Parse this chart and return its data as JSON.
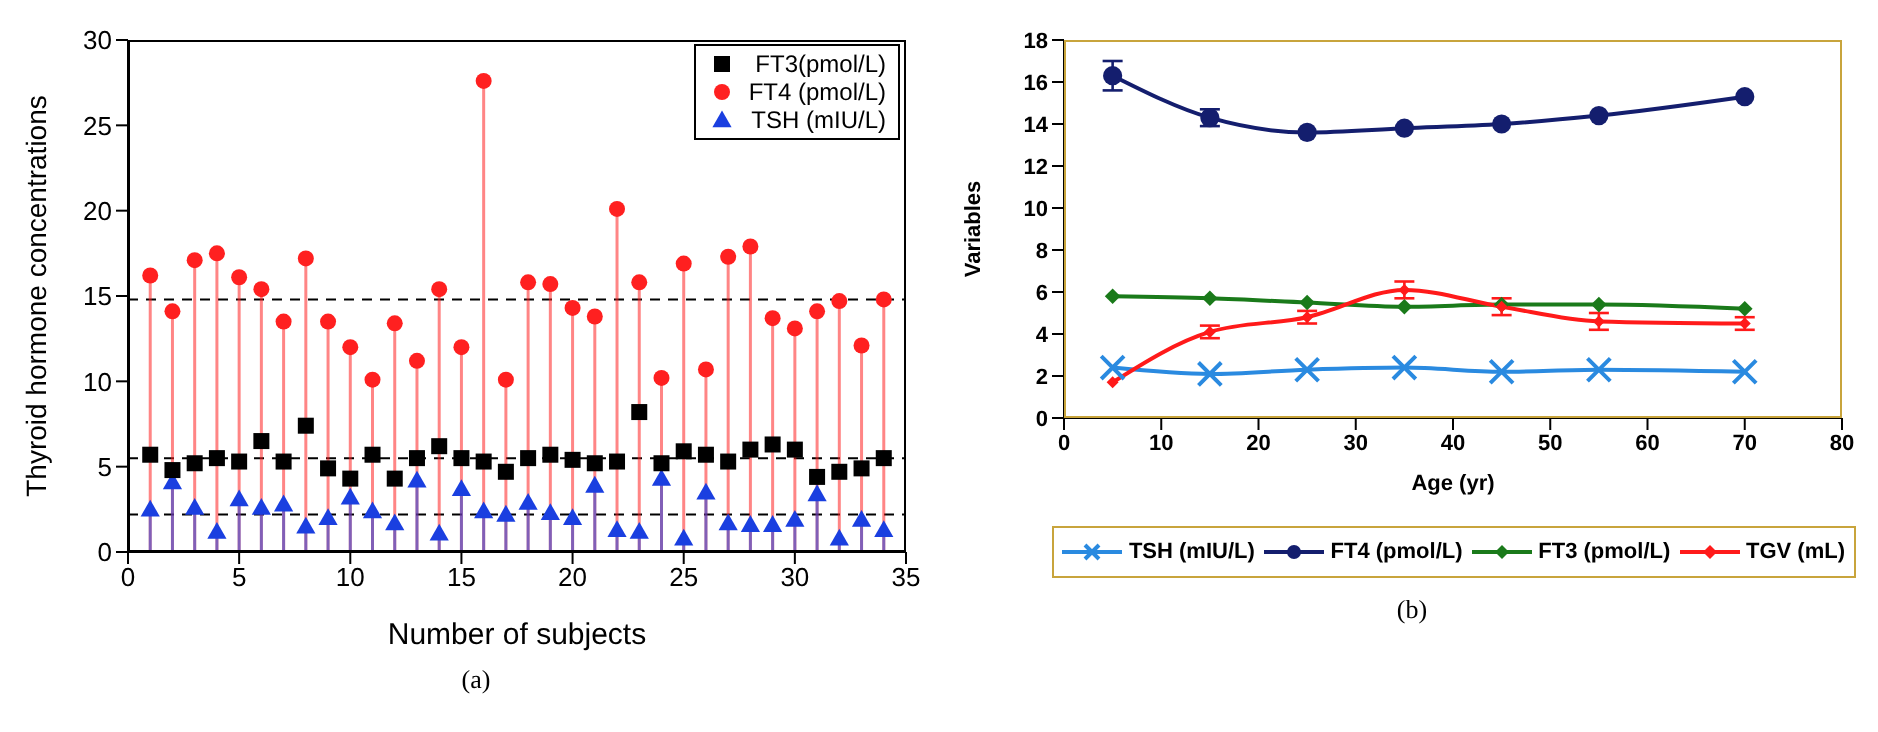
{
  "chart_data": [
    {
      "type": "lollipop",
      "xlabel": "Number of subjects",
      "ylabel": "Thyroid hormone concentrations",
      "x": [
        1,
        2,
        3,
        4,
        5,
        6,
        7,
        8,
        9,
        10,
        11,
        12,
        13,
        14,
        15,
        16,
        17,
        18,
        19,
        20,
        21,
        22,
        23,
        24,
        25,
        26,
        27,
        28,
        29,
        30,
        31,
        32,
        33,
        34
      ],
      "xlim": [
        0,
        35
      ],
      "xticks": [
        0,
        5,
        10,
        15,
        20,
        25,
        30,
        35
      ],
      "ylim": [
        0,
        30
      ],
      "yticks": [
        0,
        5,
        10,
        15,
        20,
        25,
        30
      ],
      "grid": false,
      "legend": "top right",
      "annotations": [
        "(a)"
      ],
      "ref_lines": [
        {
          "axis": "y",
          "value": 14.8,
          "line_style": "dashed",
          "color": "#000000"
        },
        {
          "axis": "y",
          "value": 5.5,
          "line_style": "dashed",
          "color": "#000000"
        },
        {
          "axis": "y",
          "value": 2.2,
          "line_style": "dashed",
          "color": "#000000"
        }
      ],
      "series": [
        {
          "name": "FT3(pmol/L)",
          "type": "scatter",
          "marker": "square",
          "color": "#000000",
          "values": [
            5.7,
            4.8,
            5.2,
            5.5,
            5.3,
            6.5,
            5.3,
            7.4,
            4.9,
            4.3,
            5.7,
            4.3,
            5.5,
            6.2,
            5.5,
            5.3,
            4.7,
            5.5,
            5.7,
            5.4,
            5.2,
            5.3,
            8.2,
            5.2,
            5.9,
            5.7,
            5.3,
            6.0,
            6.3,
            6.0,
            4.4,
            4.7,
            4.9,
            5.5
          ]
        },
        {
          "name": "FT4 (pmol/L)",
          "type": "lollipop",
          "marker": "circle",
          "color": "#ff2020",
          "values": [
            16.2,
            14.1,
            17.1,
            17.5,
            16.1,
            15.4,
            13.5,
            17.2,
            13.5,
            12.0,
            10.1,
            13.4,
            11.2,
            15.4,
            12.0,
            27.6,
            10.1,
            15.8,
            15.7,
            14.3,
            13.8,
            20.1,
            15.8,
            10.2,
            16.9,
            10.7,
            17.3,
            17.9,
            13.7,
            13.1,
            14.1,
            14.7,
            12.1,
            14.8
          ]
        },
        {
          "name": "TSH (mIU/L)",
          "type": "lollipop",
          "marker": "triangle",
          "color": "#1a3fe0",
          "values": [
            2.5,
            4.1,
            2.6,
            1.2,
            3.1,
            2.6,
            2.8,
            1.5,
            2.0,
            3.2,
            2.4,
            1.7,
            4.2,
            1.1,
            3.7,
            2.4,
            2.2,
            2.9,
            2.3,
            2.0,
            3.9,
            1.3,
            1.2,
            4.3,
            0.8,
            3.5,
            1.7,
            1.6,
            1.6,
            1.9,
            3.4,
            0.8,
            1.9,
            1.3
          ]
        }
      ]
    },
    {
      "type": "line",
      "xlabel": "Age (yr)",
      "ylabel": "Variables",
      "x": [
        5,
        15,
        25,
        35,
        45,
        55,
        70
      ],
      "xlim": [
        0,
        80
      ],
      "xticks": [
        0,
        10,
        20,
        30,
        40,
        50,
        60,
        70,
        80
      ],
      "ylim": [
        0,
        18
      ],
      "yticks": [
        0,
        2,
        4,
        6,
        8,
        10,
        12,
        14,
        16,
        18
      ],
      "grid": false,
      "legend": "bottom",
      "annotations": [
        "(b)"
      ],
      "series": [
        {
          "name": "TSH (mIU/L)",
          "marker": "cross",
          "color": "#2a8ae0",
          "values": [
            2.4,
            2.1,
            2.3,
            2.4,
            2.2,
            2.3,
            2.2
          ]
        },
        {
          "name": "FT4 (pmol/L)",
          "marker": "circle",
          "color": "#141e6e",
          "values": [
            16.3,
            14.3,
            13.6,
            13.8,
            14.0,
            14.4,
            15.3
          ],
          "errors": [
            0.7,
            0.4,
            null,
            null,
            null,
            null,
            null
          ]
        },
        {
          "name": "FT3 (pmol/L)",
          "marker": "diamond",
          "color": "#1a7a1a",
          "values": [
            5.8,
            5.7,
            5.5,
            5.3,
            5.4,
            5.4,
            5.2
          ]
        },
        {
          "name": "TGV (mL)",
          "marker": "diamond",
          "color": "#ff1a1a",
          "values": [
            1.7,
            4.1,
            4.8,
            6.1,
            5.3,
            4.6,
            4.5
          ],
          "errors": [
            null,
            0.3,
            0.3,
            0.4,
            0.4,
            0.4,
            0.3
          ]
        }
      ]
    }
  ]
}
